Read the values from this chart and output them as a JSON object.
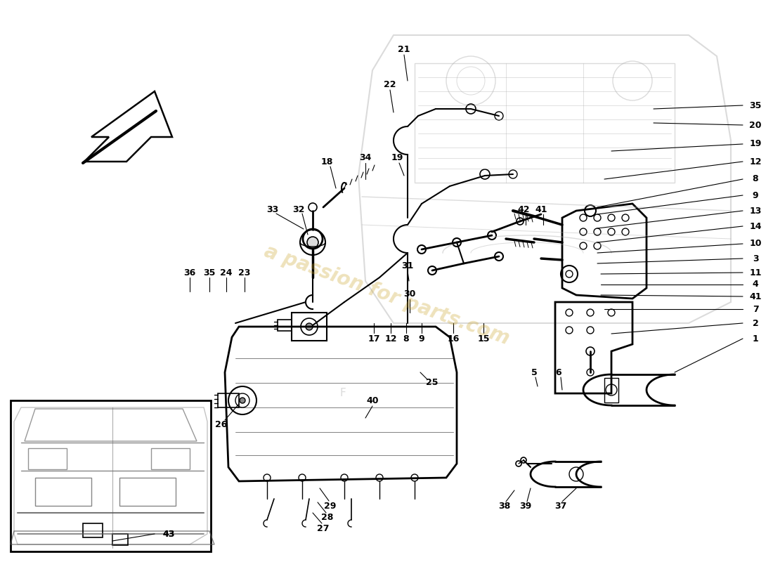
{
  "bg": "#ffffff",
  "lc": "#000000",
  "car_bg": "#cccccc",
  "watermark": "a passion for parts.com",
  "wm_color": "#c8a020",
  "wm_alpha": 0.3,
  "label_fs": 9,
  "right_labels": [
    [
      "35",
      1.0,
      0.185
    ],
    [
      "20",
      1.0,
      0.21
    ],
    [
      "19",
      1.0,
      0.235
    ],
    [
      "12",
      1.0,
      0.262
    ],
    [
      "8",
      1.0,
      0.288
    ],
    [
      "9",
      1.0,
      0.31
    ],
    [
      "13",
      1.0,
      0.333
    ],
    [
      "14",
      1.0,
      0.357
    ],
    [
      "10",
      1.0,
      0.382
    ],
    [
      "3",
      1.0,
      0.407
    ],
    [
      "11",
      1.0,
      0.428
    ],
    [
      "4",
      1.0,
      0.447
    ],
    [
      "41",
      1.0,
      0.465
    ],
    [
      "7",
      1.0,
      0.485
    ],
    [
      "2",
      1.0,
      0.507
    ],
    [
      "1",
      1.0,
      0.53
    ]
  ]
}
